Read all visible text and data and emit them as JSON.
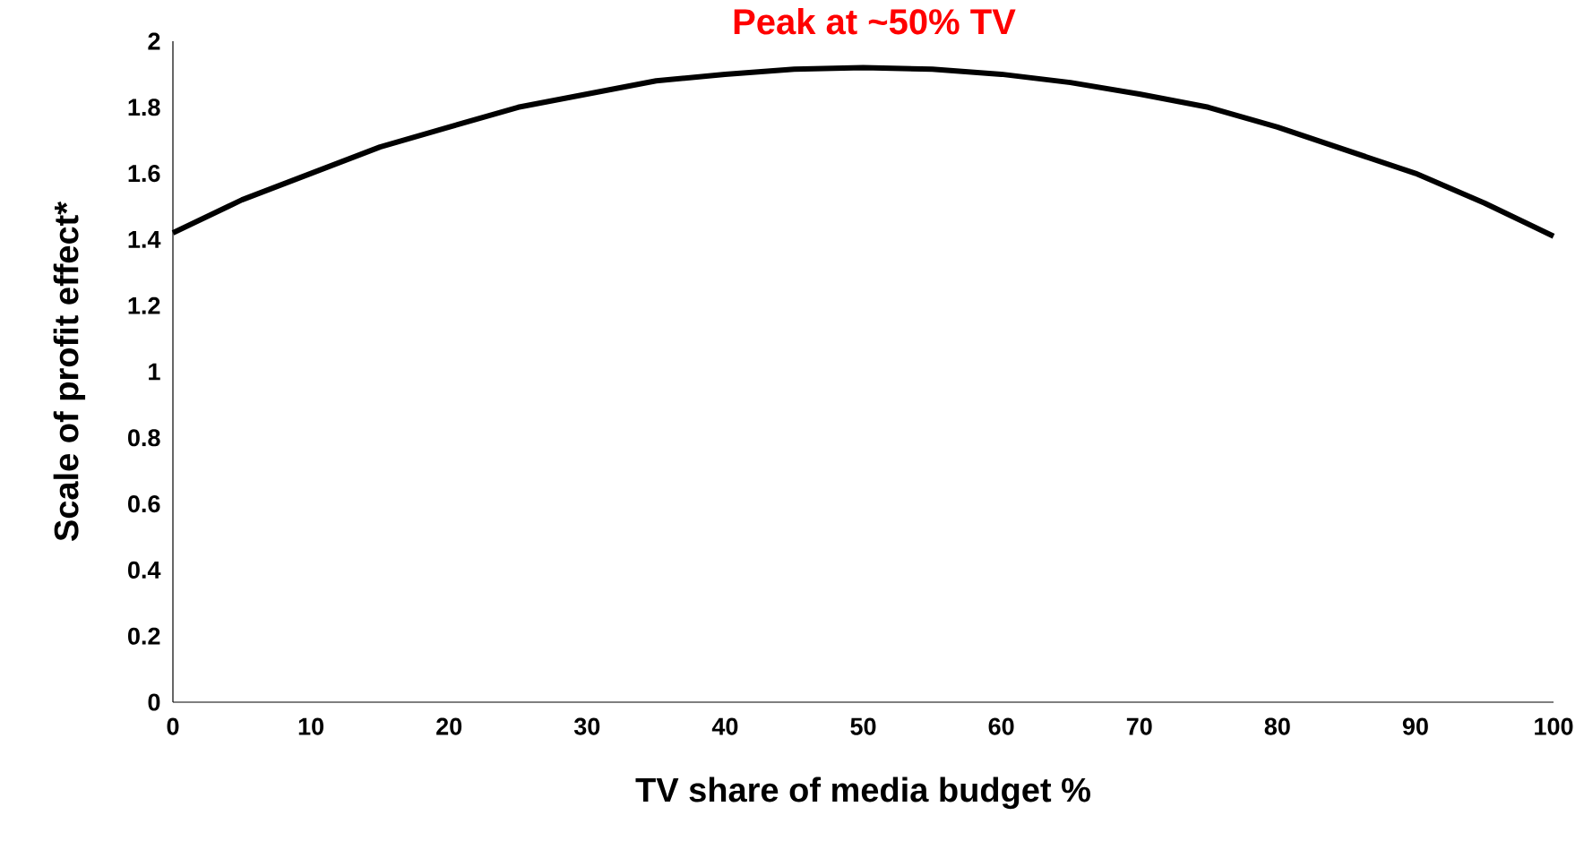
{
  "chart_data": {
    "type": "line",
    "xlabel": "TV share of media budget %",
    "ylabel": "Scale of profit effect*",
    "annotations": [
      "Peak at ~50% TV"
    ],
    "x": [
      0,
      5,
      10,
      15,
      20,
      25,
      30,
      35,
      40,
      45,
      50,
      55,
      60,
      65,
      70,
      75,
      80,
      85,
      90,
      95,
      100
    ],
    "series": [
      {
        "color": "#000000",
        "values": [
          1.42,
          1.52,
          1.6,
          1.68,
          1.74,
          1.8,
          1.84,
          1.88,
          1.9,
          1.915,
          1.92,
          1.915,
          1.9,
          1.875,
          1.84,
          1.8,
          1.74,
          1.67,
          1.6,
          1.51,
          1.41
        ]
      }
    ],
    "xlim": [
      0,
      100
    ],
    "xticks": [
      0,
      10,
      20,
      30,
      40,
      50,
      60,
      70,
      80,
      90,
      100
    ],
    "ylim": [
      0,
      2
    ],
    "yticks": [
      0,
      0.2,
      0.4,
      0.6,
      0.8,
      1,
      1.2,
      1.4,
      1.6,
      1.8,
      2
    ],
    "grid": false,
    "marker": "none",
    "line_style": "solid"
  }
}
